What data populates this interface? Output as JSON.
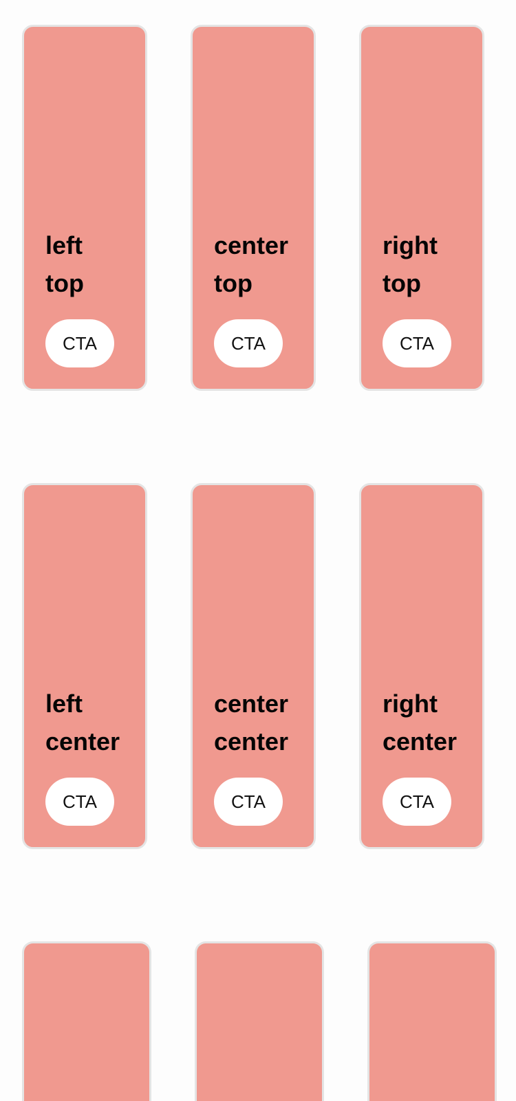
{
  "colors": {
    "page_background": "#fdfdfd",
    "card_background": "#f0998f",
    "card_border": "#e4e4e4",
    "cta_background": "#ffffff",
    "text": "#050505"
  },
  "rows": [
    {
      "cards": [
        {
          "title": "left top",
          "cta_label": "CTA"
        },
        {
          "title": "center top",
          "cta_label": "CTA"
        },
        {
          "title": "right top",
          "cta_label": "CTA"
        }
      ]
    },
    {
      "cards": [
        {
          "title": "left center",
          "cta_label": "CTA"
        },
        {
          "title": "center center",
          "cta_label": "CTA"
        },
        {
          "title": "right center",
          "cta_label": "CTA"
        }
      ]
    },
    {
      "cards": [
        {},
        {},
        {}
      ]
    }
  ]
}
